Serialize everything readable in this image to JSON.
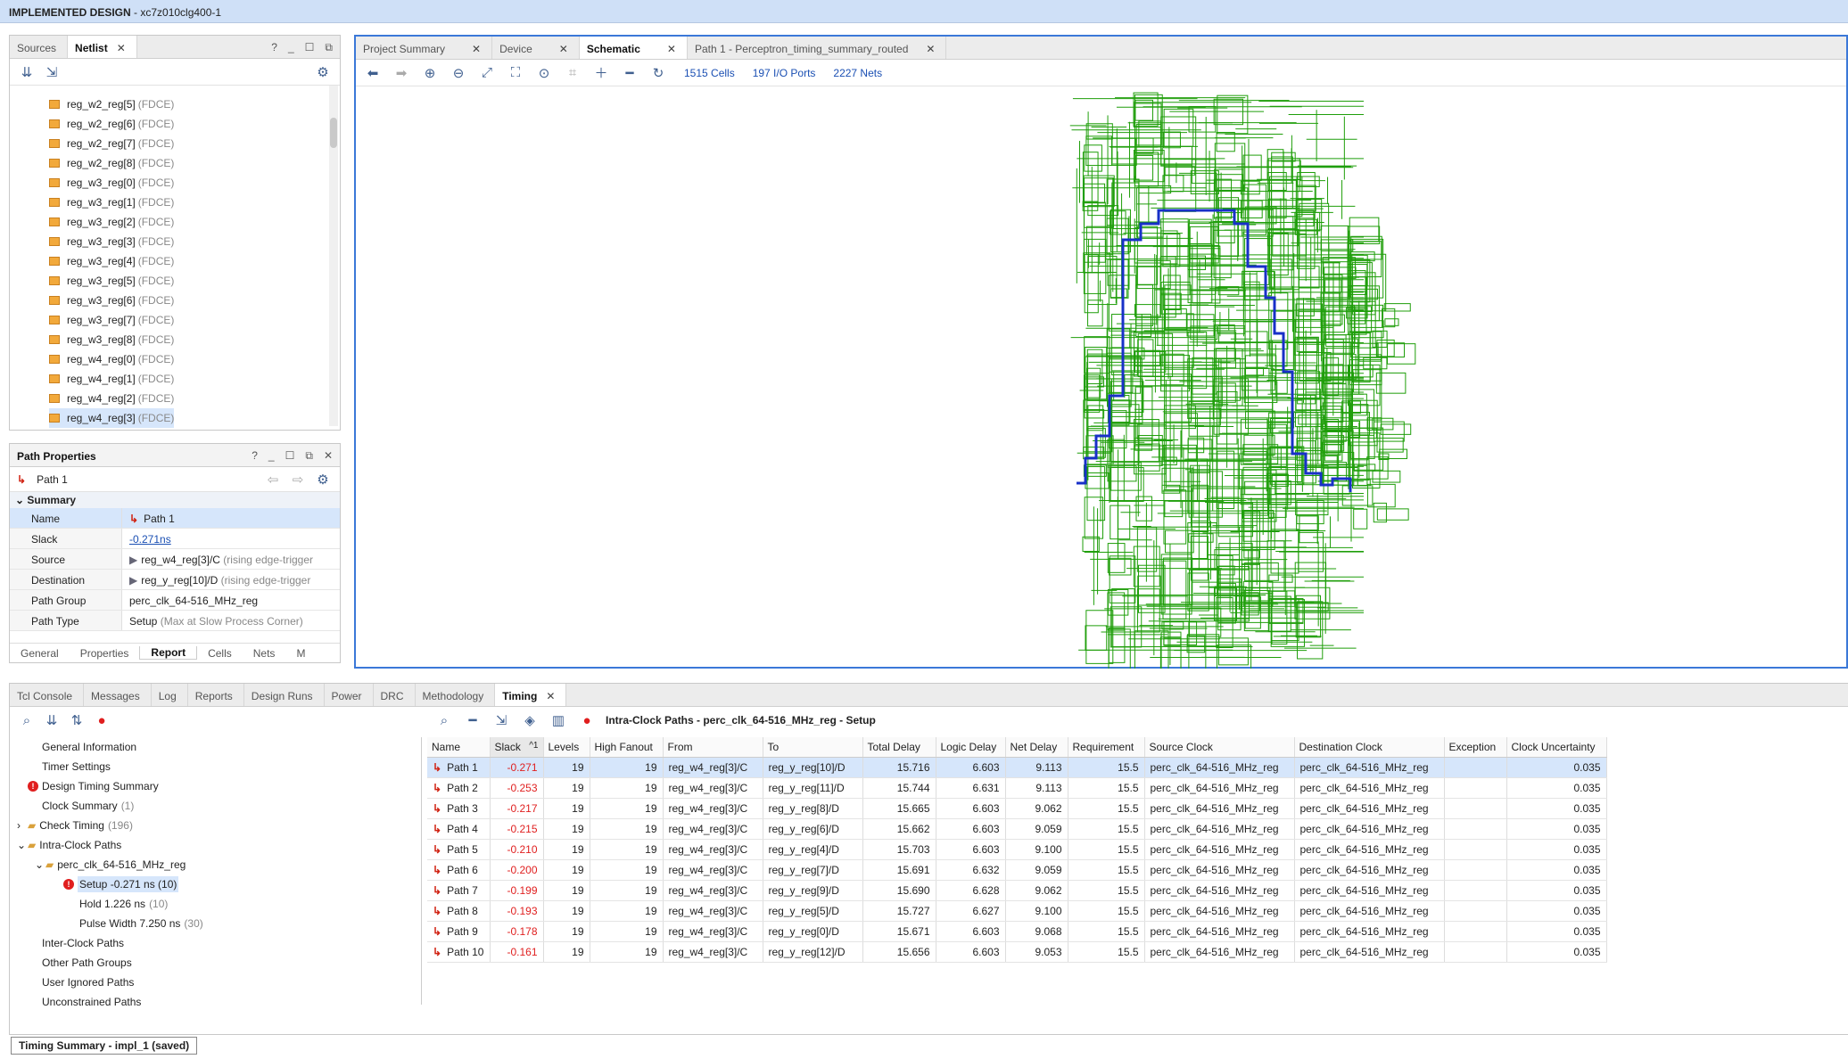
{
  "window": {
    "title_bold": "IMPLEMENTED DESIGN",
    "title_rest": " - xc7z010clg400-1"
  },
  "netlist_panel": {
    "tabs": [
      {
        "label": "Sources"
      },
      {
        "label": "Netlist"
      }
    ],
    "items": [
      {
        "name": "reg_w2_reg[5]",
        "type": "(FDCE)"
      },
      {
        "name": "reg_w2_reg[6]",
        "type": "(FDCE)"
      },
      {
        "name": "reg_w2_reg[7]",
        "type": "(FDCE)"
      },
      {
        "name": "reg_w2_reg[8]",
        "type": "(FDCE)"
      },
      {
        "name": "reg_w3_reg[0]",
        "type": "(FDCE)"
      },
      {
        "name": "reg_w3_reg[1]",
        "type": "(FDCE)"
      },
      {
        "name": "reg_w3_reg[2]",
        "type": "(FDCE)"
      },
      {
        "name": "reg_w3_reg[3]",
        "type": "(FDCE)"
      },
      {
        "name": "reg_w3_reg[4]",
        "type": "(FDCE)"
      },
      {
        "name": "reg_w3_reg[5]",
        "type": "(FDCE)"
      },
      {
        "name": "reg_w3_reg[6]",
        "type": "(FDCE)"
      },
      {
        "name": "reg_w3_reg[7]",
        "type": "(FDCE)"
      },
      {
        "name": "reg_w3_reg[8]",
        "type": "(FDCE)"
      },
      {
        "name": "reg_w4_reg[0]",
        "type": "(FDCE)"
      },
      {
        "name": "reg_w4_reg[1]",
        "type": "(FDCE)"
      },
      {
        "name": "reg_w4_reg[2]",
        "type": "(FDCE)"
      },
      {
        "name": "reg_w4_reg[3]",
        "type": "(FDCE)"
      }
    ]
  },
  "path_properties": {
    "title": "Path Properties",
    "path_label": "Path 1",
    "section": "Summary",
    "rows": [
      {
        "key": "Name",
        "value": "Path 1",
        "extra": ""
      },
      {
        "key": "Slack",
        "value": "-0.271ns",
        "extra": ""
      },
      {
        "key": "Source",
        "value": "reg_w4_reg[3]/C",
        "extra": "(rising edge-trigger"
      },
      {
        "key": "Destination",
        "value": "reg_y_reg[10]/D",
        "extra": "(rising edge-trigger"
      },
      {
        "key": "Path Group",
        "value": "perc_clk_64-516_MHz_reg",
        "extra": ""
      },
      {
        "key": "Path Type",
        "value": "Setup",
        "extra": "(Max at Slow Process Corner)"
      }
    ],
    "bottom_tabs": [
      "General",
      "Properties",
      "Report",
      "Cells",
      "Nets",
      "M"
    ]
  },
  "schematic": {
    "tabs": [
      {
        "label": "Project Summary"
      },
      {
        "label": "Device"
      },
      {
        "label": "Schematic"
      },
      {
        "label": "Path 1 - Perceptron_timing_summary_routed"
      }
    ],
    "cells": "1515 Cells",
    "ports": "197 I/O Ports",
    "nets": "2227 Nets",
    "colors": {
      "wires": "#1f9e0a",
      "path": "#1830c8"
    }
  },
  "bottom_panel": {
    "tabs": [
      "Tcl Console",
      "Messages",
      "Log",
      "Reports",
      "Design Runs",
      "Power",
      "DRC",
      "Methodology",
      "Timing"
    ],
    "heading": "Intra-Clock Paths - perc_clk_64-516_MHz_reg - Setup",
    "tree": [
      {
        "label": "General Information",
        "count": ""
      },
      {
        "label": "Timer Settings",
        "count": ""
      },
      {
        "label": "Design Timing Summary",
        "count": ""
      },
      {
        "label": "Clock Summary",
        "count": "(1)"
      },
      {
        "label": "Check Timing",
        "count": "(196)"
      },
      {
        "label": "Intra-Clock Paths",
        "count": ""
      },
      {
        "label": "perc_clk_64-516_MHz_reg",
        "count": ""
      },
      {
        "label": "Setup -0.271 ns (10)",
        "count": ""
      },
      {
        "label": "Hold 1.226 ns",
        "count": "(10)"
      },
      {
        "label": "Pulse Width 7.250 ns",
        "count": "(30)"
      },
      {
        "label": "Inter-Clock Paths",
        "count": ""
      },
      {
        "label": "Other Path Groups",
        "count": ""
      },
      {
        "label": "User Ignored Paths",
        "count": ""
      },
      {
        "label": "Unconstrained Paths",
        "count": ""
      }
    ],
    "columns": [
      "Name",
      "Slack",
      "Levels",
      "High Fanout",
      "From",
      "To",
      "Total Delay",
      "Logic Delay",
      "Net Delay",
      "Requirement",
      "Source Clock",
      "Destination Clock",
      "Exception",
      "Clock Uncertainty"
    ],
    "rows": [
      [
        "Path 1",
        "-0.271",
        "19",
        "19",
        "reg_w4_reg[3]/C",
        "reg_y_reg[10]/D",
        "15.716",
        "6.603",
        "9.113",
        "15.5",
        "perc_clk_64-516_MHz_reg",
        "perc_clk_64-516_MHz_reg",
        "",
        "0.035"
      ],
      [
        "Path 2",
        "-0.253",
        "19",
        "19",
        "reg_w4_reg[3]/C",
        "reg_y_reg[11]/D",
        "15.744",
        "6.631",
        "9.113",
        "15.5",
        "perc_clk_64-516_MHz_reg",
        "perc_clk_64-516_MHz_reg",
        "",
        "0.035"
      ],
      [
        "Path 3",
        "-0.217",
        "19",
        "19",
        "reg_w4_reg[3]/C",
        "reg_y_reg[8]/D",
        "15.665",
        "6.603",
        "9.062",
        "15.5",
        "perc_clk_64-516_MHz_reg",
        "perc_clk_64-516_MHz_reg",
        "",
        "0.035"
      ],
      [
        "Path 4",
        "-0.215",
        "19",
        "19",
        "reg_w4_reg[3]/C",
        "reg_y_reg[6]/D",
        "15.662",
        "6.603",
        "9.059",
        "15.5",
        "perc_clk_64-516_MHz_reg",
        "perc_clk_64-516_MHz_reg",
        "",
        "0.035"
      ],
      [
        "Path 5",
        "-0.210",
        "19",
        "19",
        "reg_w4_reg[3]/C",
        "reg_y_reg[4]/D",
        "15.703",
        "6.603",
        "9.100",
        "15.5",
        "perc_clk_64-516_MHz_reg",
        "perc_clk_64-516_MHz_reg",
        "",
        "0.035"
      ],
      [
        "Path 6",
        "-0.200",
        "19",
        "19",
        "reg_w4_reg[3]/C",
        "reg_y_reg[7]/D",
        "15.691",
        "6.632",
        "9.059",
        "15.5",
        "perc_clk_64-516_MHz_reg",
        "perc_clk_64-516_MHz_reg",
        "",
        "0.035"
      ],
      [
        "Path 7",
        "-0.199",
        "19",
        "19",
        "reg_w4_reg[3]/C",
        "reg_y_reg[9]/D",
        "15.690",
        "6.628",
        "9.062",
        "15.5",
        "perc_clk_64-516_MHz_reg",
        "perc_clk_64-516_MHz_reg",
        "",
        "0.035"
      ],
      [
        "Path 8",
        "-0.193",
        "19",
        "19",
        "reg_w4_reg[3]/C",
        "reg_y_reg[5]/D",
        "15.727",
        "6.627",
        "9.100",
        "15.5",
        "perc_clk_64-516_MHz_reg",
        "perc_clk_64-516_MHz_reg",
        "",
        "0.035"
      ],
      [
        "Path 9",
        "-0.178",
        "19",
        "19",
        "reg_w4_reg[3]/C",
        "reg_y_reg[0]/D",
        "15.671",
        "6.603",
        "9.068",
        "15.5",
        "perc_clk_64-516_MHz_reg",
        "perc_clk_64-516_MHz_reg",
        "",
        "0.035"
      ],
      [
        "Path 10",
        "-0.161",
        "19",
        "19",
        "reg_w4_reg[3]/C",
        "reg_y_reg[12]/D",
        "15.656",
        "6.603",
        "9.053",
        "15.5",
        "perc_clk_64-516_MHz_reg",
        "perc_clk_64-516_MHz_reg",
        "",
        "0.035"
      ]
    ]
  },
  "status_bar": {
    "label": "Timing Summary - impl_1 (saved)"
  }
}
